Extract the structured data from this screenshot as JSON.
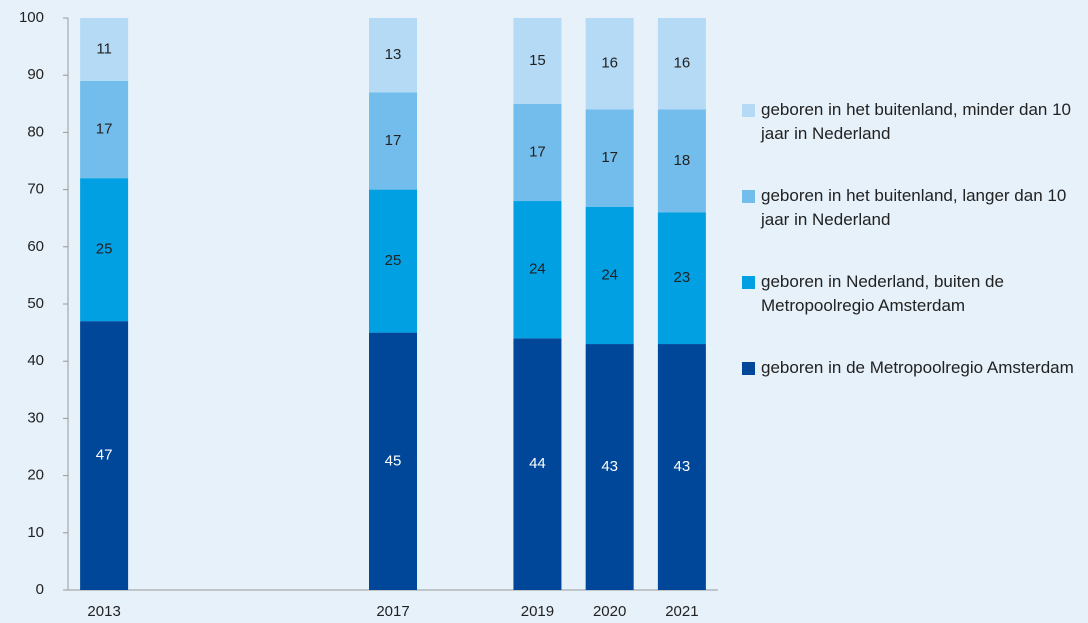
{
  "chart_data": {
    "type": "stacked_bar",
    "x": [
      2013,
      2017,
      2019,
      2020,
      2021
    ],
    "xlim": [
      2012.5,
      2021.5
    ],
    "ylim": [
      0,
      100
    ],
    "yticks": [
      0,
      10,
      20,
      30,
      40,
      50,
      60,
      70,
      80,
      90,
      100
    ],
    "legend": "right",
    "series": [
      {
        "name": "geboren in de Metropoolregio Amsterdam",
        "color": "#00479a",
        "values": [
          47,
          45,
          44,
          43,
          43
        ]
      },
      {
        "name": "geboren in Nederland, buiten de Metropoolregio Amsterdam",
        "color": "#00a0e3",
        "values": [
          25,
          25,
          24,
          24,
          23
        ]
      },
      {
        "name": "geboren in het buitenland, langer dan 10 jaar in Nederland",
        "color": "#72bdeb",
        "values": [
          17,
          17,
          17,
          17,
          18
        ]
      },
      {
        "name": "geboren in het buitenland, minder dan 10 jaar in Nederland",
        "color": "#b4daf5",
        "values": [
          11,
          13,
          15,
          16,
          16
        ]
      }
    ]
  }
}
